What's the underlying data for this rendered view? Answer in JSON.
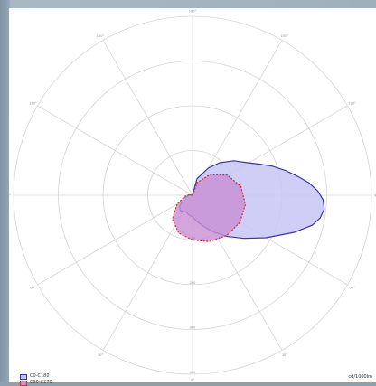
{
  "chart_data": {
    "type": "polar",
    "angle_ticks": [
      "180°",
      "150°",
      "120°",
      "90°",
      "60°",
      "30°",
      "0°",
      "30°",
      "60°",
      "90°",
      "120°",
      "150°"
    ],
    "radial_ticks": [
      "100",
      "200",
      "300",
      "400"
    ],
    "r_max": 400,
    "series": [
      {
        "name": "C0-C180",
        "color": "#3a34a8",
        "fill": "#c6c6f4",
        "points": [
          [
            180,
            0
          ],
          [
            195,
            38
          ],
          [
            210,
            70
          ],
          [
            220,
            95
          ],
          [
            230,
            120
          ],
          [
            240,
            145
          ],
          [
            245,
            165
          ],
          [
            250,
            190
          ],
          [
            255,
            215
          ],
          [
            260,
            240
          ],
          [
            264,
            262
          ],
          [
            268,
            280
          ],
          [
            272,
            292
          ],
          [
            276,
            296
          ],
          [
            280,
            290
          ],
          [
            284,
            276
          ],
          [
            290,
            242
          ],
          [
            300,
            190
          ],
          [
            310,
            150
          ],
          [
            320,
            120
          ],
          [
            330,
            95
          ],
          [
            340,
            75
          ],
          [
            350,
            60
          ],
          [
            360,
            48
          ],
          [
            10,
            45
          ],
          [
            20,
            40
          ],
          [
            30,
            42
          ],
          [
            40,
            44
          ],
          [
            50,
            38
          ],
          [
            60,
            25
          ],
          [
            70,
            22
          ],
          [
            80,
            12
          ],
          [
            90,
            8
          ],
          [
            100,
            5
          ],
          [
            180,
            0
          ]
        ]
      },
      {
        "name": "C90-C270",
        "color": "#d13030",
        "fill": "#c88fd3",
        "points": [
          [
            180,
            0
          ],
          [
            200,
            30
          ],
          [
            220,
            60
          ],
          [
            240,
            90
          ],
          [
            260,
            110
          ],
          [
            280,
            120
          ],
          [
            300,
            122
          ],
          [
            320,
            118
          ],
          [
            340,
            110
          ],
          [
            0,
            100
          ],
          [
            20,
            90
          ],
          [
            40,
            70
          ],
          [
            60,
            40
          ],
          [
            80,
            18
          ],
          [
            100,
            8
          ],
          [
            180,
            0
          ]
        ]
      }
    ]
  },
  "legend": {
    "series_1": "C0-C180",
    "series_2": "C90-C270",
    "unit": "cd/1000lm"
  }
}
